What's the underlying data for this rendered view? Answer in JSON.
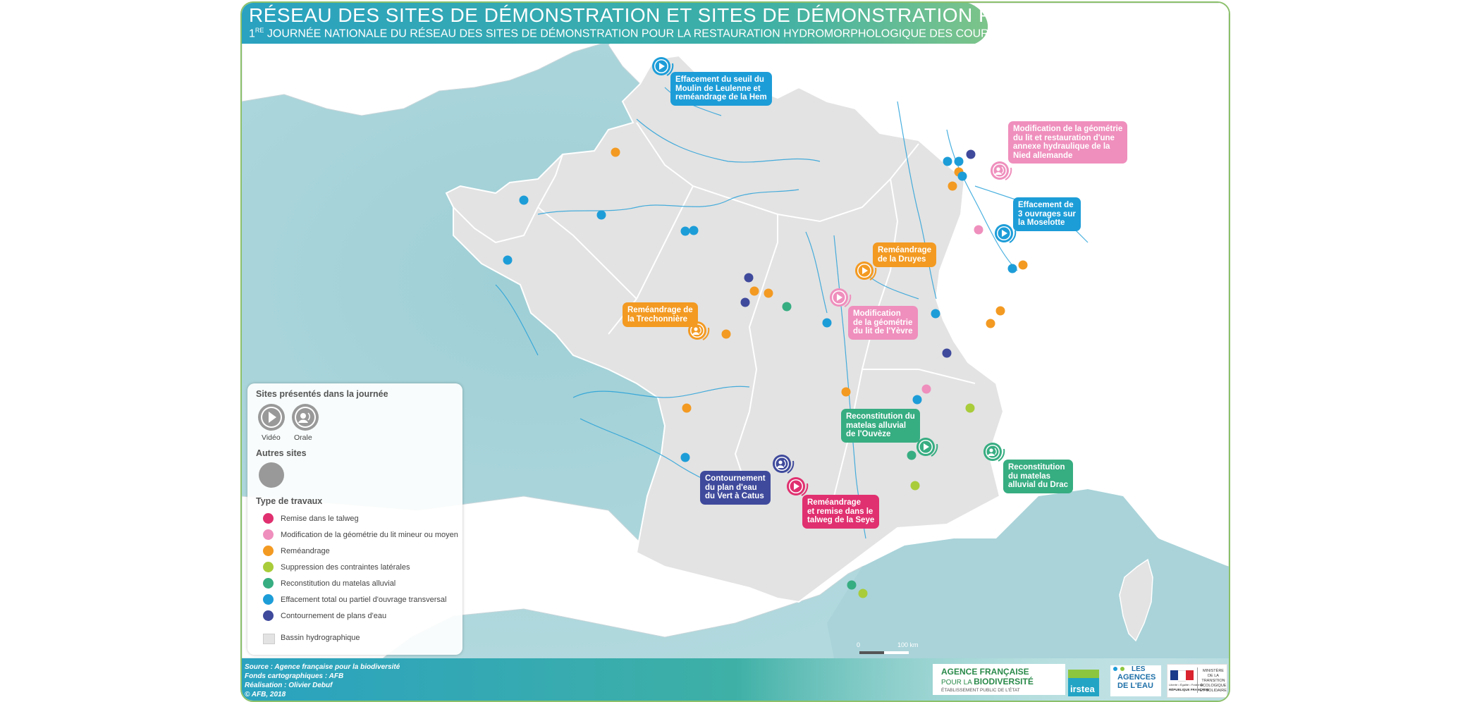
{
  "header": {
    "title": "RÉSEAU DES SITES DE DÉMONSTRATION ET SITES DE DÉMONSTRATION POTENTIELS",
    "subtitle_prefix": "1",
    "subtitle_sup": "RE",
    "subtitle": " JOURNÉE NATIONALE DU RÉSEAU DES SITES DE DÉMONSTRATION POUR LA RESTAURATION HYDROMORPHOLOGIQUE DES COURS D'EAU"
  },
  "colors": {
    "remise": "#e0306f",
    "modification": "#ef8fbd",
    "remeandrage": "#f39a22",
    "suppression": "#a9cc3a",
    "reconstitution": "#37ad82",
    "effacement": "#1d9dd8",
    "contournement": "#3f4a9c",
    "sea": "#a9d3d9",
    "land": "#e3e3e3",
    "header": "#2fa3b5"
  },
  "callouts": [
    {
      "id": "hem",
      "type": "effacement",
      "icon": "video-icon",
      "lines": [
        "Effacement du seuil du",
        "Moulin de Leulenne et",
        "reméandrage de la Hem"
      ]
    },
    {
      "id": "nied",
      "type": "modification",
      "icon": "audio-icon",
      "lines": [
        "Modification de la géométrie",
        "du lit et restauration d'une",
        "annexe hydraulique de la",
        "Nied allemande"
      ]
    },
    {
      "id": "moselotte",
      "type": "effacement",
      "icon": "video-icon",
      "lines": [
        "Effacement de",
        "3 ouvrages sur",
        "la Moselotte"
      ]
    },
    {
      "id": "druyes",
      "type": "remeandrage",
      "icon": "video-icon",
      "lines": [
        "Reméandrage",
        "de la Druyes"
      ]
    },
    {
      "id": "yevre",
      "type": "modification",
      "icon": "video-icon",
      "lines": [
        "Modification",
        "de la géométrie",
        "du lit de l'Yèvre"
      ]
    },
    {
      "id": "trechonniere",
      "type": "remeandrage",
      "icon": "audio-icon",
      "lines": [
        "Reméandrage de",
        "la Trechonnière"
      ]
    },
    {
      "id": "ouveze",
      "type": "reconstitution",
      "icon": "video-icon",
      "lines": [
        "Reconstitution du",
        "matelas alluvial",
        "de l'Ouvèze"
      ]
    },
    {
      "id": "drac",
      "type": "reconstitution",
      "icon": "audio-icon",
      "lines": [
        "Reconstitution",
        "du matelas",
        "alluvial du Drac"
      ]
    },
    {
      "id": "catus",
      "type": "contournement",
      "icon": "audio-icon",
      "lines": [
        "Contournement",
        "du plan d'eau",
        "du Vert à Catus"
      ]
    },
    {
      "id": "seye",
      "type": "remise",
      "icon": "video-icon",
      "lines": [
        "Reméandrage",
        "et remise dans le",
        "talweg de la Seye"
      ]
    }
  ],
  "sites": [
    {
      "type": "remeandrage"
    },
    {
      "type": "effacement"
    },
    {
      "type": "effacement"
    },
    {
      "type": "contournement"
    },
    {
      "type": "remeandrage"
    },
    {
      "type": "remeandrage"
    },
    {
      "type": "effacement"
    },
    {
      "type": "effacement"
    },
    {
      "type": "effacement"
    },
    {
      "type": "effacement"
    },
    {
      "type": "effacement"
    },
    {
      "type": "contournement"
    },
    {
      "type": "remeandrage"
    },
    {
      "type": "contournement"
    },
    {
      "type": "remeandrage"
    },
    {
      "type": "reconstitution"
    },
    {
      "type": "effacement"
    },
    {
      "type": "remeandrage"
    },
    {
      "type": "effacement"
    },
    {
      "type": "modification"
    },
    {
      "type": "effacement"
    },
    {
      "type": "remeandrage"
    },
    {
      "type": "remeandrage"
    },
    {
      "type": "remeandrage"
    },
    {
      "type": "effacement"
    },
    {
      "type": "contournement"
    },
    {
      "type": "remeandrage"
    },
    {
      "type": "modification"
    },
    {
      "type": "effacement"
    },
    {
      "type": "suppression"
    },
    {
      "type": "remeandrage"
    },
    {
      "type": "effacement"
    },
    {
      "type": "reconstitution"
    },
    {
      "type": "suppression"
    },
    {
      "type": "reconstitution"
    },
    {
      "type": "suppression"
    }
  ],
  "legend": {
    "presented_heading": "Sites présentés dans la journée",
    "video_label": "Vidéo",
    "orale_label": "Orale",
    "other_heading": "Autres sites",
    "works_heading": "Type de travaux",
    "items": [
      {
        "type": "remise",
        "label": "Remise dans le talweg"
      },
      {
        "type": "modification",
        "label": "Modification de la géométrie du lit mineur ou moyen"
      },
      {
        "type": "remeandrage",
        "label": "Reméandrage"
      },
      {
        "type": "suppression",
        "label": "Suppression des contraintes latérales"
      },
      {
        "type": "reconstitution",
        "label": "Reconstitution du matelas alluvial"
      },
      {
        "type": "effacement",
        "label": "Effacement total ou partiel d'ouvrage transversal"
      },
      {
        "type": "contournement",
        "label": "Contournement de plans d'eau"
      }
    ],
    "bassin_label": "Bassin hydrographique"
  },
  "scale": {
    "zero": "0",
    "distance": "100 km"
  },
  "credits": [
    "Source : Agence française pour la biodiversité",
    "Fonds cartographiques : AFB",
    "Réalisation : Olivier Debuf",
    "© AFB, 2018"
  ],
  "logos": {
    "afb_line1": "AGENCE FRANÇAISE",
    "afb_line2_a": "POUR LA ",
    "afb_line2_b": "BIODIVERSITÉ",
    "afb_line3": "ÉTABLISSEMENT PUBLIC DE L'ÉTAT",
    "irstea": "irstea",
    "agences_1": "LES",
    "agences_2": "AGENCES",
    "agences_3": "DE L'EAU",
    "ministere_1": "MINISTÈRE",
    "ministere_2": "DE LA TRANSITION",
    "ministere_3": "ÉCOLOGIQUE",
    "ministere_4": "ET SOLIDAIRE",
    "rf_1": "Liberté • Égalité • Fraternité",
    "rf_2": "RÉPUBLIQUE FRANÇAISE"
  }
}
